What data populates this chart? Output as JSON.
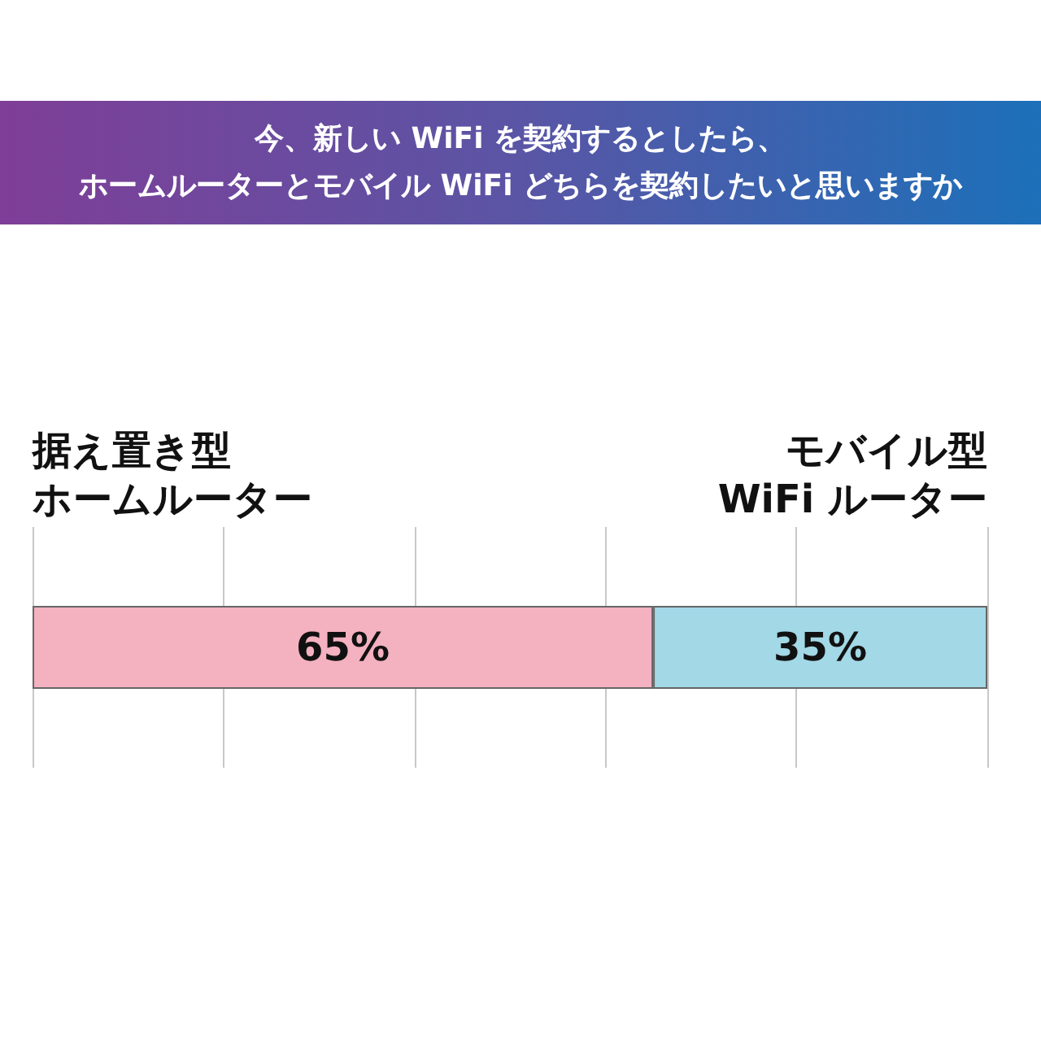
{
  "chart_data": {
    "type": "bar",
    "title": "今、新しい WiFi を契約するとしたら、ホームルーターとモバイル WiFi どちらを契約したいと思いますか",
    "orientation": "horizontal",
    "stacked": true,
    "categories": [
      null
    ],
    "series": [
      {
        "name": "据え置き型ホームルーター",
        "color": "#f4b1c0",
        "values": [
          65
        ],
        "value_labels": [
          "65%"
        ]
      },
      {
        "name": "モバイル型WiFi ルーター",
        "color": "#a3d8e6",
        "values": [
          35
        ],
        "value_labels": [
          "35%"
        ]
      }
    ],
    "xlim": [
      0,
      100
    ],
    "xticks": [
      {
        "value": 0,
        "label": null
      },
      {
        "value": 20,
        "label": null
      },
      {
        "value": 40,
        "label": null
      },
      {
        "value": 60,
        "label": null
      },
      {
        "value": 80,
        "label": null
      },
      {
        "value": 100,
        "label": null
      }
    ],
    "grid": "x"
  }
}
